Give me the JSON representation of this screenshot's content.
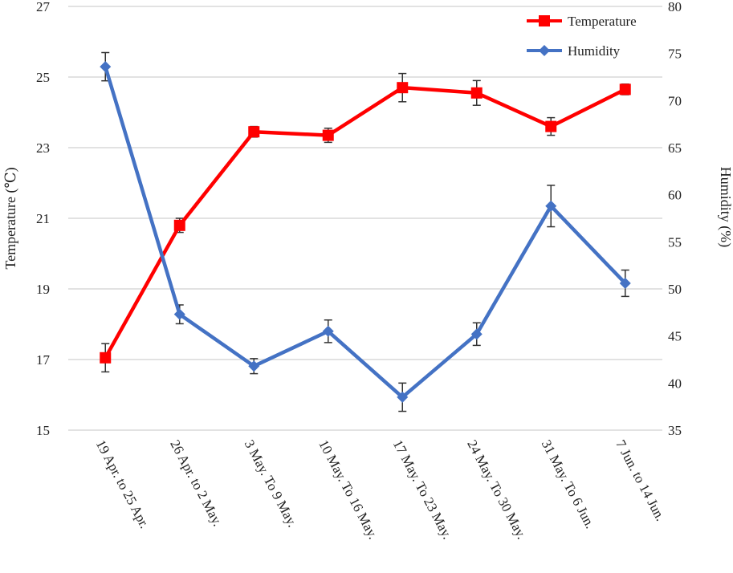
{
  "chart_data": {
    "type": "line",
    "categories": [
      "19 Apr. to 25 Apr.",
      "26 Apr. to 2 May.",
      "3 May. To 9 May.",
      "10 May. To 16 May.",
      "17 May. To 23 May.",
      "24 May. To 30 May.",
      "31 May. To 6 Jun.",
      "7 Jun. to 14 Jun."
    ],
    "y_left": {
      "label": "Temperature (℃)",
      "min": 15,
      "max": 27,
      "step": 2
    },
    "y_right": {
      "label": "Humidity (%)",
      "min": 35,
      "max": 80,
      "step": 5
    },
    "grid": true,
    "legend_position": "top-right",
    "series": [
      {
        "name": "Temperature",
        "axis": "left",
        "color": "#ff0000",
        "marker": "square",
        "values": [
          17.05,
          20.8,
          23.45,
          23.35,
          24.7,
          24.55,
          23.6,
          24.65
        ],
        "errors": [
          0.4,
          0.2,
          0.15,
          0.2,
          0.4,
          0.35,
          0.25,
          0.15
        ]
      },
      {
        "name": "Humidity",
        "axis": "right",
        "color": "#4472c4",
        "marker": "diamond",
        "values": [
          73.6,
          47.3,
          41.8,
          45.5,
          38.5,
          45.2,
          58.8,
          50.6
        ],
        "errors": [
          1.5,
          1.0,
          0.8,
          1.2,
          1.5,
          1.2,
          2.2,
          1.4
        ]
      }
    ]
  }
}
